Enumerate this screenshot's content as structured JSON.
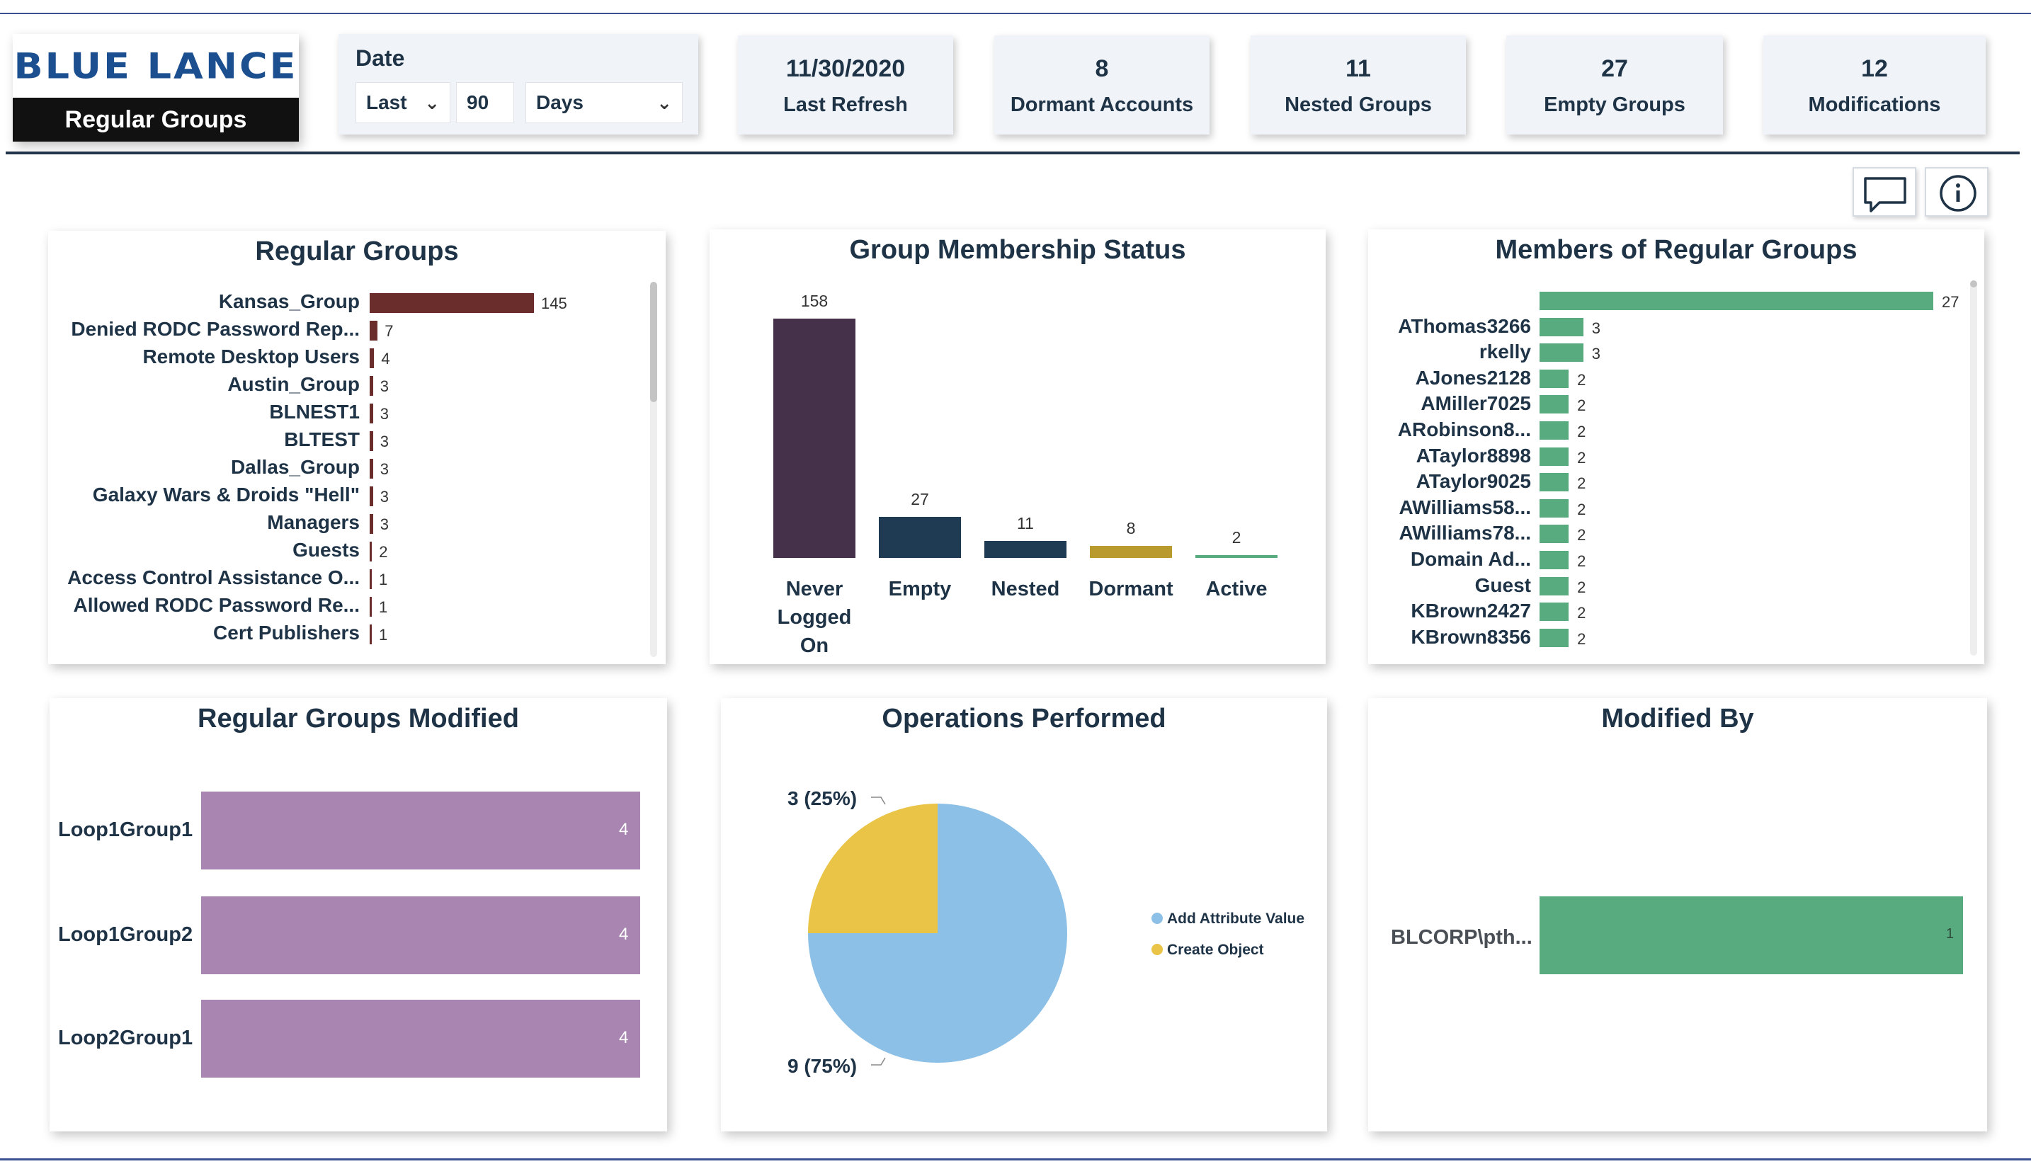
{
  "header": {
    "logo_text": "BLUE LANCE",
    "page_title": "Regular Groups"
  },
  "date_filter": {
    "title": "Date",
    "period": "Last",
    "amount": "90",
    "unit": "Days"
  },
  "kpis": [
    {
      "value": "11/30/2020",
      "label": "Last Refresh"
    },
    {
      "value": "8",
      "label": "Dormant Accounts"
    },
    {
      "value": "11",
      "label": "Nested Groups"
    },
    {
      "value": "27",
      "label": "Empty Groups"
    },
    {
      "value": "12",
      "label": "Modifications"
    }
  ],
  "toolbar": {
    "comment_icon": "speech-bubble-icon",
    "info_icon": "info-icon"
  },
  "colors": {
    "regular_groups_bar": "#6b2c2c",
    "never_logged_on": "#46314b",
    "empty": "#1f3a53",
    "nested": "#1f3a53",
    "dormant": "#b89a2e",
    "active": "#58ab7f",
    "members_bar": "#58ab7f",
    "modified_bar": "#a886b1",
    "add_attribute_value": "#8cc0e6",
    "create_object": "#e9c447"
  },
  "panels": {
    "regular_groups": "Regular Groups",
    "membership_status": "Group Membership Status",
    "members": "Members of Regular Groups",
    "groups_modified": "Regular Groups Modified",
    "operations": "Operations Performed",
    "modified_by": "Modified By"
  },
  "chart_data": [
    {
      "type": "bar",
      "orientation": "horizontal",
      "title": "Regular Groups",
      "categories": [
        "Kansas_Group",
        "Denied RODC Password Rep...",
        "Remote Desktop Users",
        "Austin_Group",
        "BLNEST1",
        "BLTEST",
        "Dallas_Group",
        "Galaxy Wars & Droids \"Hell\"",
        "Managers",
        "Guests",
        "Access Control Assistance O...",
        "Allowed RODC Password Re...",
        "Cert Publishers"
      ],
      "values": [
        145,
        7,
        4,
        3,
        3,
        3,
        3,
        3,
        3,
        2,
        1,
        1,
        1
      ]
    },
    {
      "type": "bar",
      "title": "Group Membership Status",
      "categories": [
        "Never Logged On",
        "Empty",
        "Nested",
        "Dormant",
        "Active"
      ],
      "values": [
        158,
        27,
        11,
        8,
        2
      ]
    },
    {
      "type": "bar",
      "orientation": "horizontal",
      "title": "Members of Regular Groups",
      "categories": [
        "",
        "AThomas3266",
        "rkelly",
        "AJones2128",
        "AMiller7025",
        "ARobinson8...",
        "ATaylor8898",
        "ATaylor9025",
        "AWilliams58...",
        "AWilliams78...",
        "Domain Ad...",
        "Guest",
        "KBrown2427",
        "KBrown8356"
      ],
      "values": [
        27,
        3,
        3,
        2,
        2,
        2,
        2,
        2,
        2,
        2,
        2,
        2,
        2,
        2
      ]
    },
    {
      "type": "bar",
      "orientation": "horizontal",
      "title": "Regular Groups Modified",
      "categories": [
        "Loop1Group1",
        "Loop1Group2",
        "Loop2Group1"
      ],
      "values": [
        4,
        4,
        4
      ]
    },
    {
      "type": "pie",
      "title": "Operations Performed",
      "slices": [
        {
          "label": "Add Attribute Value",
          "value": 9,
          "display": "9 (75%)"
        },
        {
          "label": "Create Object",
          "value": 3,
          "display": "3 (25%)"
        }
      ],
      "legend": "right"
    },
    {
      "type": "bar",
      "orientation": "horizontal",
      "title": "Modified By",
      "categories": [
        "BLCORP\\pth..."
      ],
      "values": [
        1
      ]
    }
  ]
}
